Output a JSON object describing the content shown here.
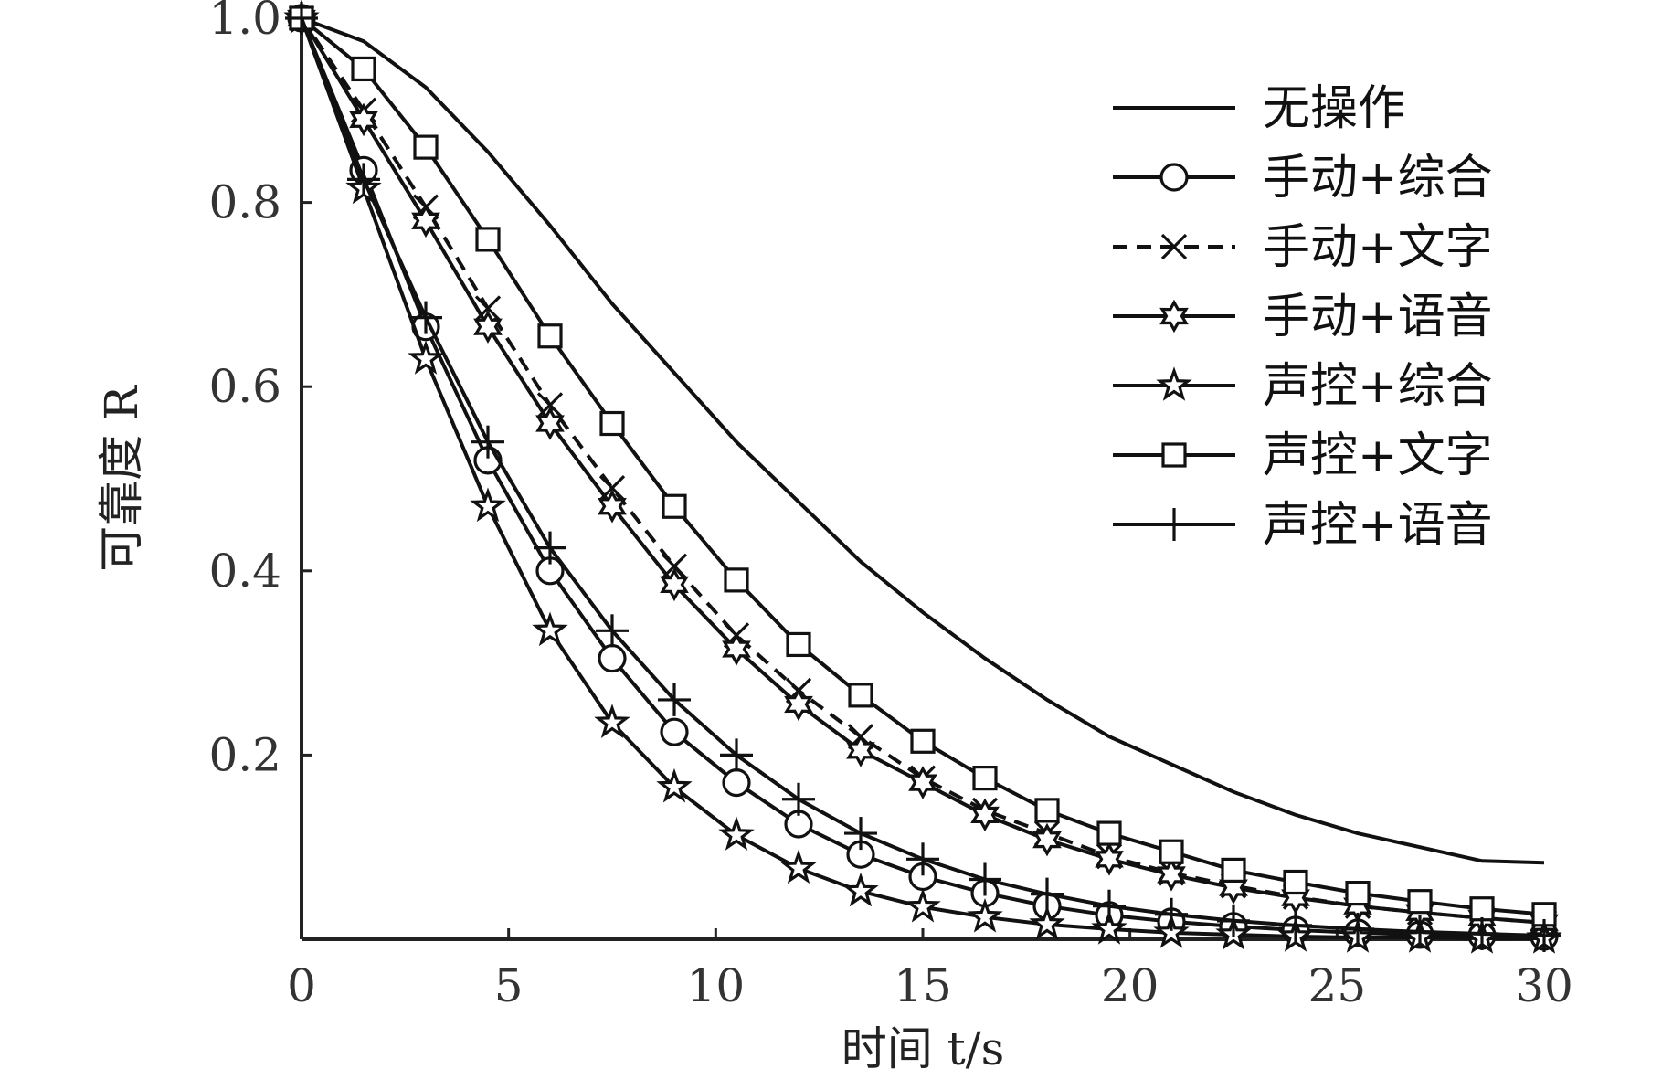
{
  "chart_data": {
    "type": "line",
    "xlabel": "时间 t/s",
    "ylabel": "可靠度 R",
    "xlim": [
      0,
      30
    ],
    "ylim": [
      0,
      1.0
    ],
    "x_ticks": [
      "0",
      "5",
      "10",
      "15",
      "20",
      "25",
      "30"
    ],
    "y_ticks": [
      "0.2",
      "0.4",
      "0.6",
      "0.8",
      "1.0"
    ],
    "grid": false,
    "legend_position": "top-right",
    "series": [
      {
        "name": "无操作",
        "marker": "none",
        "dash": "solid",
        "x": [
          0,
          1.5,
          3,
          4.5,
          6,
          7.5,
          9,
          10.5,
          12,
          13.5,
          15,
          16.5,
          18,
          19.5,
          21,
          22.5,
          24,
          25.5,
          27,
          28.5,
          30
        ],
        "values": [
          1.0,
          0.975,
          0.925,
          0.855,
          0.775,
          0.69,
          0.615,
          0.54,
          0.475,
          0.41,
          0.355,
          0.305,
          0.26,
          0.22,
          0.19,
          0.16,
          0.135,
          0.115,
          0.1,
          0.085,
          0.083
        ]
      },
      {
        "name": "手动+综合",
        "marker": "circle",
        "dash": "solid",
        "x": [
          0,
          1.5,
          3,
          4.5,
          6,
          7.5,
          9,
          10.5,
          12,
          13.5,
          15,
          16.5,
          18,
          19.5,
          21,
          22.5,
          24,
          25.5,
          27,
          28.5,
          30
        ],
        "values": [
          1.0,
          0.835,
          0.665,
          0.52,
          0.4,
          0.305,
          0.225,
          0.17,
          0.125,
          0.092,
          0.068,
          0.05,
          0.036,
          0.026,
          0.019,
          0.014,
          0.01,
          0.007,
          0.005,
          0.004,
          0.003
        ]
      },
      {
        "name": "手动+文字",
        "marker": "x",
        "dash": "dashed",
        "x": [
          0,
          1.5,
          3,
          4.5,
          6,
          7.5,
          9,
          10.5,
          12,
          13.5,
          15,
          16.5,
          18,
          19.5,
          21,
          22.5,
          24,
          25.5,
          27,
          28.5,
          30
        ],
        "values": [
          1.0,
          0.9,
          0.795,
          0.685,
          0.58,
          0.49,
          0.405,
          0.33,
          0.27,
          0.22,
          0.175,
          0.14,
          0.115,
          0.09,
          0.072,
          0.058,
          0.046,
          0.036,
          0.029,
          0.023,
          0.018
        ]
      },
      {
        "name": "手动+语音",
        "marker": "hexagram",
        "dash": "solid",
        "x": [
          0,
          1.5,
          3,
          4.5,
          6,
          7.5,
          9,
          10.5,
          12,
          13.5,
          15,
          16.5,
          18,
          19.5,
          21,
          22.5,
          24,
          25.5,
          27,
          28.5,
          30
        ],
        "values": [
          1.0,
          0.89,
          0.78,
          0.665,
          0.56,
          0.47,
          0.385,
          0.315,
          0.255,
          0.205,
          0.17,
          0.135,
          0.108,
          0.087,
          0.07,
          0.056,
          0.045,
          0.036,
          0.029,
          0.023,
          0.018
        ]
      },
      {
        "name": "声控+综合",
        "marker": "pentagram",
        "dash": "solid",
        "x": [
          0,
          1.5,
          3,
          4.5,
          6,
          7.5,
          9,
          10.5,
          12,
          13.5,
          15,
          16.5,
          18,
          19.5,
          21,
          22.5,
          24,
          25.5,
          27,
          28.5,
          30
        ],
        "values": [
          1.0,
          0.815,
          0.63,
          0.47,
          0.335,
          0.235,
          0.165,
          0.113,
          0.077,
          0.052,
          0.035,
          0.024,
          0.016,
          0.011,
          0.007,
          0.005,
          0.003,
          0.002,
          0.002,
          0.001,
          0.001
        ]
      },
      {
        "name": "声控+文字",
        "marker": "square",
        "dash": "solid",
        "x": [
          0,
          1.5,
          3,
          4.5,
          6,
          7.5,
          9,
          10.5,
          12,
          13.5,
          15,
          16.5,
          18,
          19.5,
          21,
          22.5,
          24,
          25.5,
          27,
          28.5,
          30
        ],
        "values": [
          1.0,
          0.945,
          0.86,
          0.76,
          0.655,
          0.56,
          0.47,
          0.39,
          0.32,
          0.265,
          0.215,
          0.175,
          0.14,
          0.115,
          0.095,
          0.075,
          0.062,
          0.05,
          0.041,
          0.033,
          0.027
        ]
      },
      {
        "name": "声控+语音",
        "marker": "plus",
        "dash": "solid",
        "x": [
          0,
          1.5,
          3,
          4.5,
          6,
          7.5,
          9,
          10.5,
          12,
          13.5,
          15,
          16.5,
          18,
          19.5,
          21,
          22.5,
          24,
          25.5,
          27,
          28.5,
          30
        ],
        "values": [
          1.0,
          0.825,
          0.675,
          0.54,
          0.425,
          0.335,
          0.26,
          0.2,
          0.152,
          0.115,
          0.087,
          0.065,
          0.049,
          0.036,
          0.027,
          0.02,
          0.015,
          0.011,
          0.008,
          0.006,
          0.004
        ]
      }
    ]
  }
}
